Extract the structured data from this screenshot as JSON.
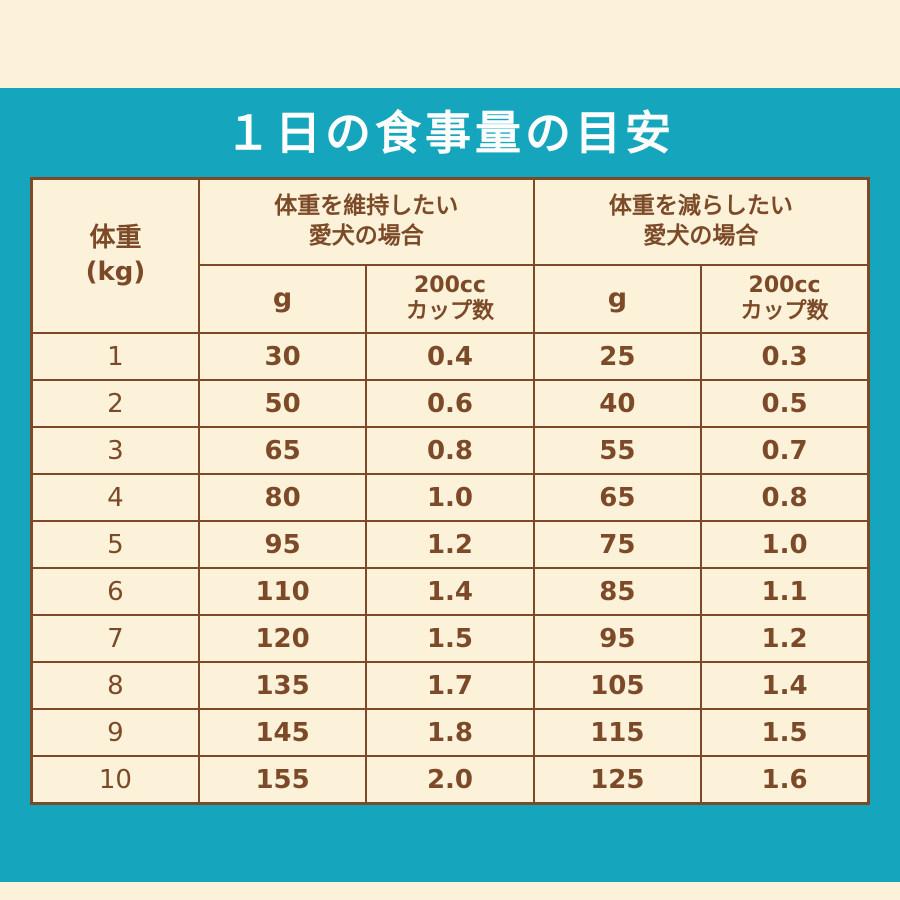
{
  "page": {
    "title": "１日の食事量の目安",
    "colors": {
      "background_cream": "#FBF2D9",
      "panel_teal": "#15A6BD",
      "table_brown": "#7C4A28",
      "title_white": "#FFFFFF"
    }
  },
  "table": {
    "weight_header": "体重\n(kg)",
    "group_headers": [
      "体重を維持したい\n愛犬の場合",
      "体重を減らしたい\n愛犬の場合"
    ],
    "sub_headers": {
      "maintain_g": "g",
      "maintain_cup": "200cc\nカップ数",
      "reduce_g": "g",
      "reduce_cup": "200cc\nカップ数"
    },
    "rows": [
      [
        "1",
        "30",
        "0.4",
        "25",
        "0.3"
      ],
      [
        "2",
        "50",
        "0.6",
        "40",
        "0.5"
      ],
      [
        "3",
        "65",
        "0.8",
        "55",
        "0.7"
      ],
      [
        "4",
        "80",
        "1.0",
        "65",
        "0.8"
      ],
      [
        "5",
        "95",
        "1.2",
        "75",
        "1.0"
      ],
      [
        "6",
        "110",
        "1.4",
        "85",
        "1.1"
      ],
      [
        "7",
        "120",
        "1.5",
        "95",
        "1.2"
      ],
      [
        "8",
        "135",
        "1.7",
        "105",
        "1.4"
      ],
      [
        "9",
        "145",
        "1.8",
        "115",
        "1.5"
      ],
      [
        "10",
        "155",
        "2.0",
        "125",
        "1.6"
      ]
    ]
  },
  "chart_data": {
    "type": "table",
    "title": "１日の食事量の目安",
    "columns": [
      "体重(kg)",
      "体重を維持したい愛犬の場合 g",
      "体重を維持したい愛犬の場合 200ccカップ数",
      "体重を減らしたい愛犬の場合 g",
      "体重を減らしたい愛犬の場合 200ccカップ数"
    ],
    "rows": [
      [
        1,
        30,
        0.4,
        25,
        0.3
      ],
      [
        2,
        50,
        0.6,
        40,
        0.5
      ],
      [
        3,
        65,
        0.8,
        55,
        0.7
      ],
      [
        4,
        80,
        1.0,
        65,
        0.8
      ],
      [
        5,
        95,
        1.2,
        75,
        1.0
      ],
      [
        6,
        110,
        1.4,
        85,
        1.1
      ],
      [
        7,
        120,
        1.5,
        95,
        1.2
      ],
      [
        8,
        135,
        1.7,
        105,
        1.4
      ],
      [
        9,
        145,
        1.8,
        115,
        1.5
      ],
      [
        10,
        155,
        2.0,
        125,
        1.6
      ]
    ]
  }
}
